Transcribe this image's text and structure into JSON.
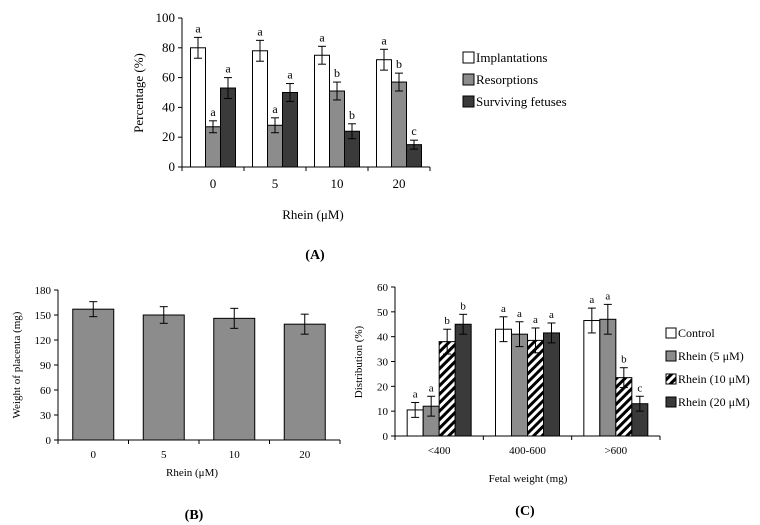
{
  "chart_data": [
    {
      "panel": "(A)",
      "type": "bar",
      "ylabel": "Percentage (%)",
      "xlabel": "Rhein (μM)",
      "ylim": [
        0,
        100
      ],
      "yticks": [
        "0",
        "20",
        "40",
        "60",
        "80",
        "100"
      ],
      "categories": [
        "0",
        "5",
        "10",
        "20"
      ],
      "series": [
        {
          "name": "Implantations",
          "style": "white",
          "values": [
            80,
            78,
            75,
            72
          ],
          "errors": [
            7,
            7,
            6,
            7
          ],
          "labels": [
            "a",
            "a",
            "a",
            "a"
          ]
        },
        {
          "name": "Resorptions",
          "style": "gray",
          "values": [
            27,
            28,
            51,
            57
          ],
          "errors": [
            4,
            5,
            6,
            6
          ],
          "labels": [
            "a",
            "a",
            "b",
            "b"
          ]
        },
        {
          "name": "Surviving fetuses",
          "style": "dark",
          "values": [
            53,
            50,
            24,
            15
          ],
          "errors": [
            7,
            6,
            5,
            3
          ],
          "labels": [
            "a",
            "a",
            "b",
            "c"
          ]
        }
      ]
    },
    {
      "panel": "(B)",
      "type": "bar",
      "ylabel": "Weight of placenta (mg)",
      "xlabel": "Rhein (μM)",
      "ylim": [
        0,
        180
      ],
      "yticks": [
        "0",
        "30",
        "60",
        "90",
        "120",
        "150",
        "180"
      ],
      "categories": [
        "0",
        "5",
        "10",
        "20"
      ],
      "series": [
        {
          "name": "Weight of placenta",
          "style": "gray",
          "values": [
            157,
            150,
            146,
            139
          ],
          "errors": [
            9,
            10,
            12,
            12
          ]
        }
      ]
    },
    {
      "panel": "(C)",
      "type": "bar",
      "ylabel": "Distribution (%)",
      "xlabel": "Fetal weight (mg)",
      "ylim": [
        0,
        60
      ],
      "yticks": [
        "0",
        "10",
        "20",
        "30",
        "40",
        "50",
        "60"
      ],
      "categories": [
        "<400",
        "400-600",
        ">600"
      ],
      "series": [
        {
          "name": "Control",
          "style": "white",
          "values": [
            10.5,
            43,
            46.5
          ],
          "errors": [
            3,
            5,
            5
          ],
          "labels": [
            "a",
            "a",
            "a"
          ]
        },
        {
          "name": "Rhein (5 μM)",
          "style": "gray",
          "values": [
            12,
            41,
            47
          ],
          "errors": [
            4,
            5,
            6
          ],
          "labels": [
            "a",
            "a",
            "a"
          ]
        },
        {
          "name": "Rhein (10 μM)",
          "style": "hatch",
          "values": [
            38,
            38.5,
            23.5
          ],
          "errors": [
            5,
            5,
            4
          ],
          "labels": [
            "b",
            "a",
            "b"
          ]
        },
        {
          "name": "Rhein (20 μM)",
          "style": "dark",
          "values": [
            45,
            41.5,
            13
          ],
          "errors": [
            4,
            4,
            3
          ],
          "labels": [
            "b",
            "a",
            "c"
          ]
        }
      ]
    }
  ]
}
